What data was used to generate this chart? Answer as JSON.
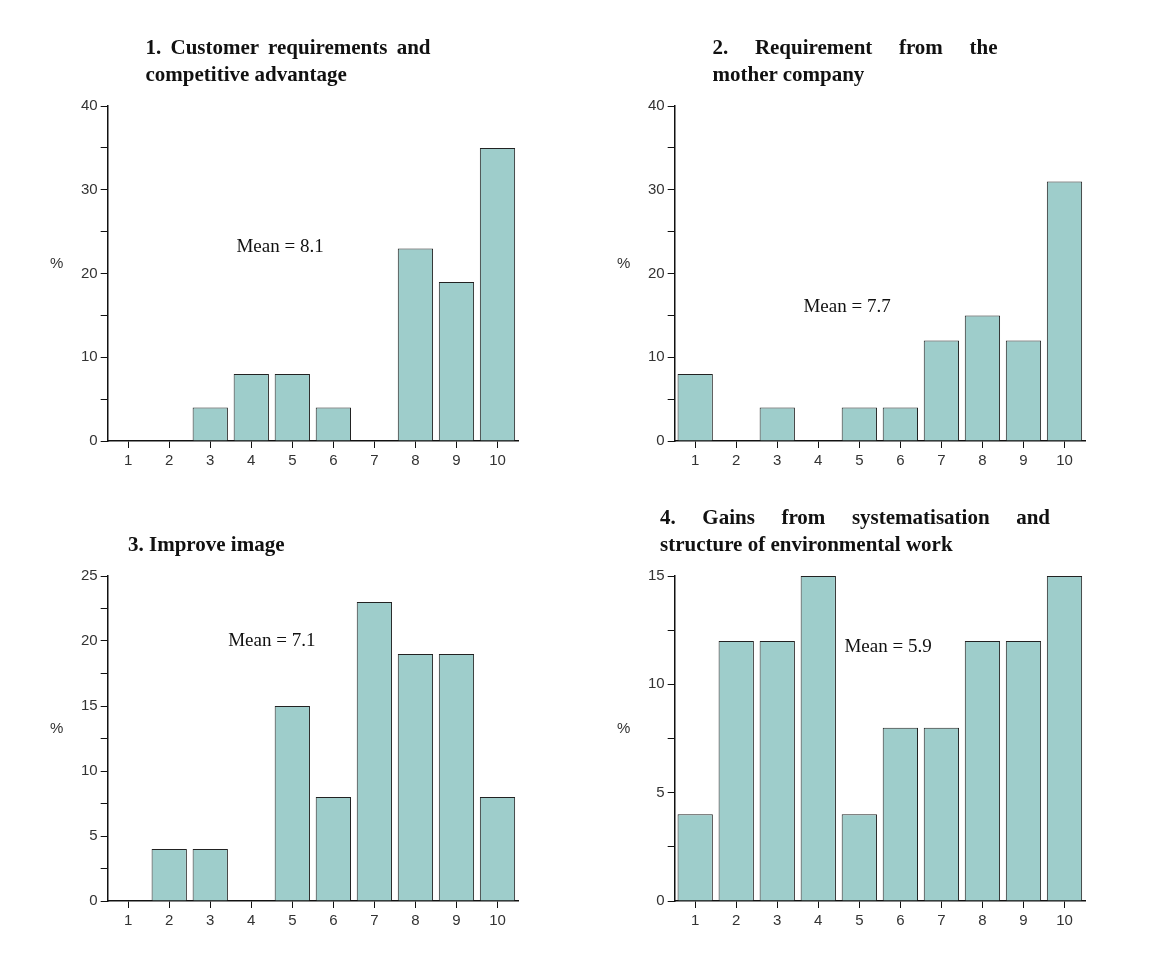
{
  "chart_data": [
    {
      "type": "bar",
      "title": "1. Customer requirements and competitive advantage",
      "ylabel": "%",
      "categories": [
        "1",
        "2",
        "3",
        "4",
        "5",
        "6",
        "7",
        "8",
        "9",
        "10"
      ],
      "values": [
        0,
        0,
        4,
        8,
        8,
        4,
        0,
        23,
        19,
        35
      ],
      "color": "#9ecdcb",
      "ylim": [
        0,
        40
      ],
      "yticks": [
        0,
        {
          "value": 5,
          "label": null
        },
        10,
        {
          "value": 15,
          "label": null
        },
        20,
        {
          "value": 25,
          "label": null
        },
        30,
        {
          "value": 35,
          "label": null
        },
        40
      ],
      "annotations": [
        "Mean = 8.1"
      ]
    },
    {
      "type": "bar",
      "title": "2. Requirement from the mother company",
      "ylabel": "%",
      "categories": [
        "1",
        "2",
        "3",
        "4",
        "5",
        "6",
        "7",
        "8",
        "9",
        "10"
      ],
      "values": [
        8,
        0,
        4,
        0,
        4,
        4,
        12,
        15,
        12,
        31
      ],
      "color": "#9ecdcb",
      "ylim": [
        0,
        40
      ],
      "yticks": [
        0,
        {
          "value": 5,
          "label": null
        },
        10,
        {
          "value": 15,
          "label": null
        },
        20,
        {
          "value": 25,
          "label": null
        },
        30,
        {
          "value": 35,
          "label": null
        },
        40
      ],
      "annotations": [
        "Mean = 7.7"
      ]
    },
    {
      "type": "bar",
      "title": "3. Improve image",
      "ylabel": "%",
      "categories": [
        "1",
        "2",
        "3",
        "4",
        "5",
        "6",
        "7",
        "8",
        "9",
        "10"
      ],
      "values": [
        0,
        4,
        4,
        0,
        15,
        8,
        23,
        19,
        19,
        8
      ],
      "color": "#9ecdcb",
      "ylim": [
        0,
        25
      ],
      "yticks": [
        0,
        {
          "value": 2.5,
          "label": null
        },
        5,
        {
          "value": 7.5,
          "label": null
        },
        10,
        {
          "value": 12.5,
          "label": null
        },
        15,
        {
          "value": 17.5,
          "label": null
        },
        20,
        {
          "value": 22.5,
          "label": null
        },
        25
      ],
      "annotations": [
        "Mean = 7.1"
      ]
    },
    {
      "type": "bar",
      "title": "4. Gains from systematisation and structure of environmental work",
      "ylabel": "%",
      "categories": [
        "1",
        "2",
        "3",
        "4",
        "5",
        "6",
        "7",
        "8",
        "9",
        "10"
      ],
      "values": [
        4,
        12,
        12,
        15,
        4,
        8,
        8,
        12,
        12,
        15
      ],
      "color": "#9ecdcb",
      "ylim": [
        0,
        15
      ],
      "yticks": [
        0,
        {
          "value": 2.5,
          "label": null
        },
        5,
        {
          "value": 7.5,
          "label": null
        },
        10,
        {
          "value": 12.5,
          "label": null
        },
        15
      ],
      "annotations": [
        "Mean = 5.9"
      ]
    }
  ]
}
